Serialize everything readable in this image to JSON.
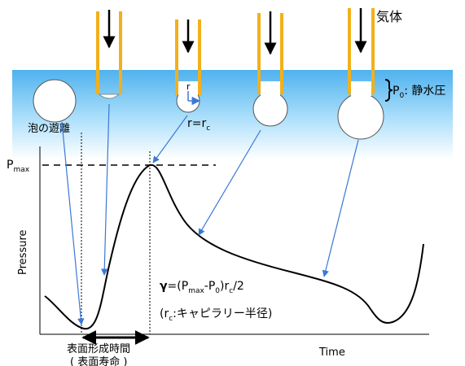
{
  "labels": {
    "gas": "気体",
    "bubble_release": "泡の遊離",
    "hydrostatic_p": "P",
    "hydrostatic_sub": "0",
    "hydrostatic_text": ": 静水圧",
    "radius_r": "r",
    "rrc_main": "r=r",
    "rrc_sub": "c",
    "pmax_main": "P",
    "pmax_sub": "max",
    "y_axis": "Pressure",
    "x_axis": "Time",
    "formula_gamma": "γ",
    "formula_a": "=(P",
    "formula_max": "max",
    "formula_b": "-P",
    "formula_zero": "0",
    "formula_c": ")r",
    "formula_rc": "c",
    "formula_d": "/2",
    "note_open": "(r",
    "note_sub": "c",
    "note_text": ":キャピラリー半径)",
    "surface_time": "表面形成時間",
    "surface_life": "( 表面寿命 )"
  },
  "colors": {
    "water_top": "#4fb2ee",
    "water_mid": "#aee0fb",
    "water_bottom": "#ffffff",
    "capillary_gold": "#f2b01c",
    "arrow_blue": "#3b78d6"
  }
}
